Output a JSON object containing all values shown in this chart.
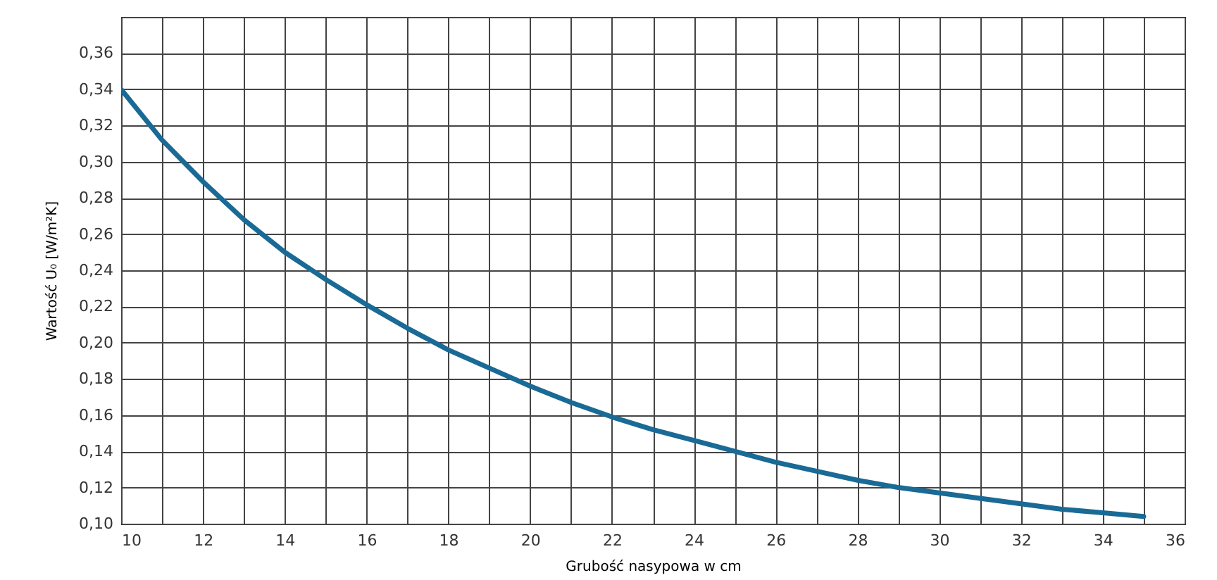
{
  "chart_data": {
    "type": "line",
    "xlabel": "Grubość nasypowa w cm",
    "ylabel": "Wartość U₀ [W/m²K]",
    "x": [
      10,
      11,
      12,
      13,
      14,
      15,
      16,
      17,
      18,
      19,
      20,
      21,
      22,
      23,
      24,
      25,
      26,
      27,
      28,
      29,
      30,
      31,
      32,
      33,
      34,
      35
    ],
    "series": [
      {
        "color": "#1a6a96",
        "values": [
          0.34,
          0.312,
          0.289,
          0.268,
          0.25,
          0.235,
          0.221,
          0.208,
          0.196,
          0.186,
          0.176,
          0.167,
          0.159,
          0.152,
          0.146,
          0.14,
          0.134,
          0.129,
          0.124,
          0.12,
          0.117,
          0.114,
          0.111,
          0.108,
          0.106,
          0.104
        ]
      }
    ],
    "xlim": [
      10,
      36
    ],
    "xticks": [
      10,
      {
        "value": 11,
        "label": null
      },
      12,
      {
        "value": 13,
        "label": null
      },
      14,
      {
        "value": 15,
        "label": null
      },
      16,
      {
        "value": 17,
        "label": null
      },
      18,
      {
        "value": 19,
        "label": null
      },
      20,
      {
        "value": 21,
        "label": null
      },
      22,
      {
        "value": 23,
        "label": null
      },
      24,
      {
        "value": 25,
        "label": null
      },
      26,
      {
        "value": 27,
        "label": null
      },
      28,
      {
        "value": 29,
        "label": null
      },
      30,
      {
        "value": 31,
        "label": null
      },
      32,
      {
        "value": 33,
        "label": null
      },
      34,
      {
        "value": 35,
        "label": null
      },
      36
    ],
    "ylim": [
      0.1,
      0.38
    ],
    "yticks": [
      {
        "value": 0.1,
        "label": "0,10"
      },
      {
        "value": 0.12,
        "label": "0,12"
      },
      {
        "value": 0.14,
        "label": "0,14"
      },
      {
        "value": 0.16,
        "label": "0,16"
      },
      {
        "value": 0.18,
        "label": "0,18"
      },
      {
        "value": 0.2,
        "label": "0,20"
      },
      {
        "value": 0.22,
        "label": "0,22"
      },
      {
        "value": 0.24,
        "label": "0,24"
      },
      {
        "value": 0.26,
        "label": "0,26"
      },
      {
        "value": 0.28,
        "label": "0,28"
      },
      {
        "value": 0.3,
        "label": "0,30"
      },
      {
        "value": 0.32,
        "label": "0,32"
      },
      {
        "value": 0.34,
        "label": "0,34"
      },
      {
        "value": 0.36,
        "label": "0,36"
      },
      {
        "value": 0.38,
        "label": null
      }
    ],
    "grid": true,
    "marker": "none",
    "line_style": "solid"
  }
}
